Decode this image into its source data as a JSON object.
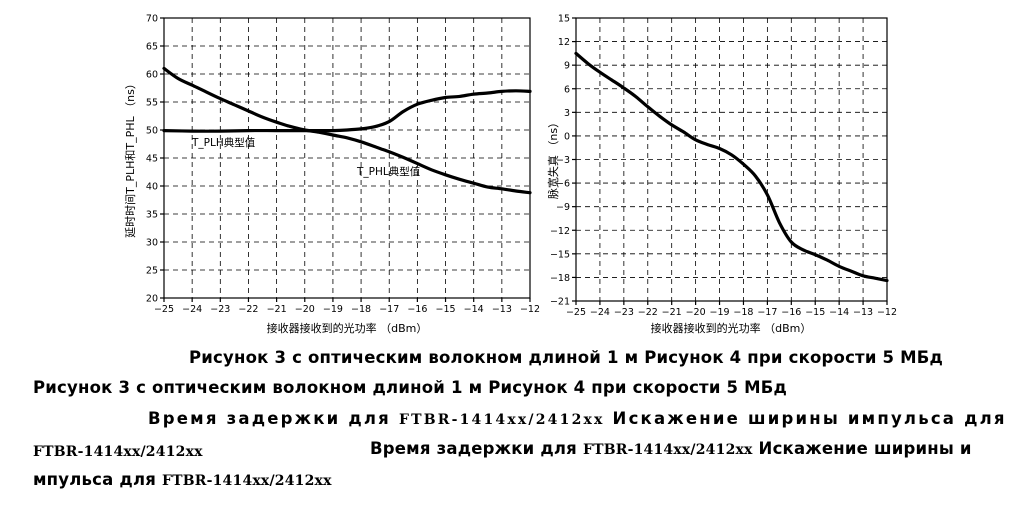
{
  "chart_data": [
    {
      "type": "line",
      "xlabel": "接收器接收到的光功率 （dBm）",
      "ylabel": "延时时间T_PLH和T_PHL （ns）",
      "xlim": [
        -25,
        -12
      ],
      "ylim": [
        20,
        70
      ],
      "x_ticks": [
        -25,
        -24,
        -23,
        -22,
        -21,
        -20,
        -19,
        -18,
        -17,
        -16,
        -15,
        -14,
        -13,
        -12
      ],
      "y_ticks": [
        20,
        25,
        30,
        35,
        40,
        45,
        50,
        55,
        60,
        65,
        70
      ],
      "grid": true,
      "series": [
        {
          "name": "T_PHL典型值",
          "x": [
            -25,
            -24.5,
            -24,
            -23.5,
            -23,
            -22.5,
            -22,
            -21.5,
            -21,
            -20.5,
            -20,
            -19.5,
            -19,
            -18.5,
            -18,
            -17.5,
            -17,
            -16.5,
            -16,
            -15.5,
            -15,
            -14.5,
            -14,
            -13.5,
            -13,
            -12.5,
            -12
          ],
          "y": [
            61,
            59.2,
            58,
            56.8,
            55.6,
            54.5,
            53.4,
            52.3,
            51.4,
            50.6,
            50,
            49.6,
            49.1,
            48.6,
            47.9,
            47,
            46.1,
            45.1,
            44,
            42.9,
            42,
            41.2,
            40.5,
            39.8,
            39.5,
            39.1,
            38.8
          ]
        },
        {
          "name": "T_PLH典型值",
          "x": [
            -25,
            -24,
            -23,
            -22,
            -21,
            -20,
            -19.5,
            -19,
            -18.5,
            -18,
            -17.5,
            -17,
            -16.5,
            -16,
            -15.5,
            -15,
            -14.5,
            -14,
            -13.5,
            -13,
            -12.5,
            -12
          ],
          "y": [
            49.9,
            49.8,
            49.8,
            49.9,
            49.9,
            49.9,
            49.9,
            49.9,
            50,
            50.2,
            50.6,
            51.5,
            53.3,
            54.6,
            55.3,
            55.8,
            56,
            56.4,
            56.6,
            56.9,
            57,
            56.9
          ]
        }
      ]
    },
    {
      "type": "line",
      "xlabel": "接收器接收到的光功率 （dBm）",
      "ylabel": "脉宽失真 （ns）",
      "xlim": [
        -25,
        -12
      ],
      "ylim": [
        -21,
        15
      ],
      "x_ticks": [
        -25,
        -24,
        -23,
        -22,
        -21,
        -20,
        -19,
        -18,
        -17,
        -16,
        -15,
        -14,
        -13,
        -12
      ],
      "y_ticks": [
        15,
        12,
        9,
        6,
        3,
        0,
        -3,
        -6,
        -9,
        -12,
        -15,
        -18,
        -21
      ],
      "grid": true,
      "series": [
        {
          "x": [
            -25,
            -24.5,
            -24,
            -23.5,
            -23,
            -22.5,
            -22,
            -21.5,
            -21,
            -20.5,
            -20,
            -19.5,
            -19,
            -18.5,
            -18,
            -17.5,
            -17,
            -16.5,
            -16,
            -15.5,
            -15,
            -14.5,
            -14,
            -13.5,
            -13,
            -12.5,
            -12
          ],
          "y": [
            10.5,
            9.2,
            8.1,
            7.1,
            6.1,
            5,
            3.7,
            2.5,
            1.4,
            0.5,
            -0.5,
            -1.1,
            -1.6,
            -2.4,
            -3.6,
            -5.1,
            -7.5,
            -11,
            -13.5,
            -14.5,
            -15.1,
            -15.8,
            -16.6,
            -17.2,
            -17.8,
            -18.1,
            -18.4
          ]
        }
      ]
    }
  ],
  "annotations": {
    "tplh": "T_PLH典型值",
    "tphl": "T_PHL典型值"
  },
  "captions": {
    "line1": "Рисунок 3 с оптическим волокном длиной 1 м Рисунок 4 при скорости 5 МБд",
    "line2": "Рисунок 3 с оптическим волокном длиной 1 м Рисунок 4 при скорости 5 МБд",
    "line3_a": "Время задержки для ",
    "line3_b": "FTBR-1414xx/2412xx",
    "line3_c": " Искажение ширины импульса для",
    "line4_a": "FTBR-1414xx/2412xx",
    "line4_b": "Время задержки для ",
    "line4_c": "FTBR-1414xx/2412xx",
    "line4_d": " Искажение ширины и",
    "line5_a": "мпульса для ",
    "line5_b": "FTBR-1414xx/2412xx"
  }
}
